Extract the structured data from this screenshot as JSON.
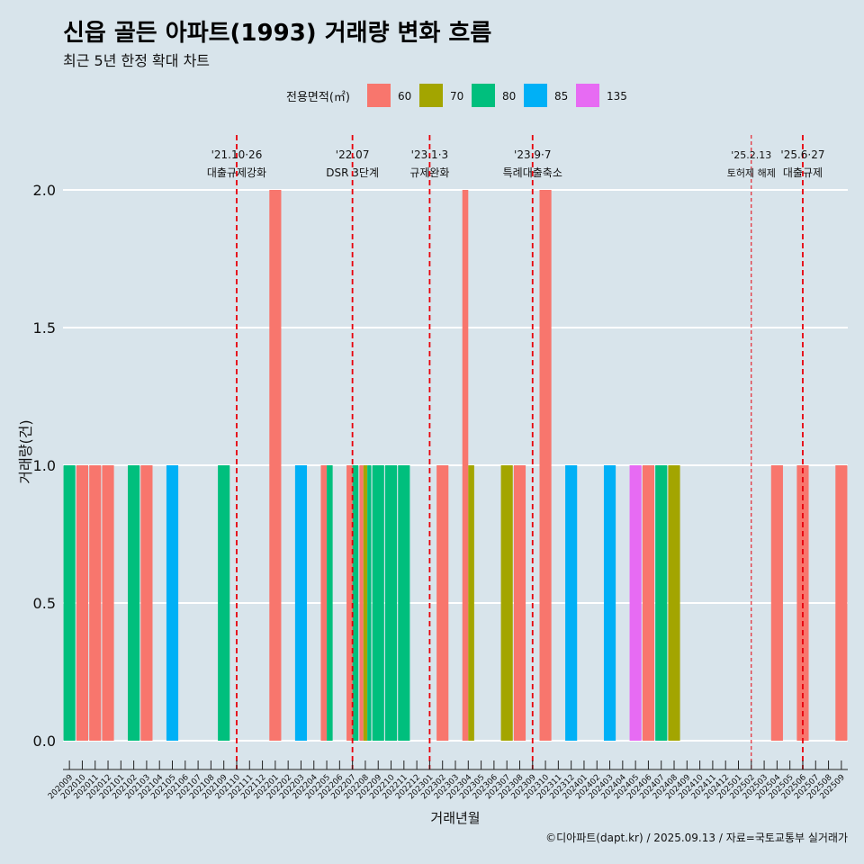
{
  "title": "신읍 골든 아파트(1993) 거래량 변화 흐름",
  "subtitle": "최근 5년 한정 확대 차트",
  "caption": "©디아파트(dapt.kr) / 2025.09.13 / 자료=국토교통부 실거래가",
  "chart_data": {
    "type": "bar",
    "xlabel": "거래년월",
    "ylabel": "거래량(건)",
    "ylim": [
      0,
      2
    ],
    "yticks": [
      0.0,
      0.5,
      1.0,
      1.5,
      2.0
    ],
    "ytick_labels": [
      "0.0",
      "0.5",
      "1.0",
      "1.5",
      "2.0"
    ],
    "legend_title": "전용면적(㎡)",
    "legend_position": "top",
    "grid": true,
    "categories": [
      "202009",
      "202010",
      "202011",
      "202012",
      "202101",
      "202102",
      "202103",
      "202104",
      "202105",
      "202106",
      "202107",
      "202108",
      "202109",
      "202110",
      "202111",
      "202112",
      "202201",
      "202202",
      "202203",
      "202204",
      "202205",
      "202206",
      "202207",
      "202208",
      "202209",
      "202210",
      "202211",
      "202212",
      "202301",
      "202302",
      "202303",
      "202304",
      "202305",
      "202306",
      "202307",
      "202308",
      "202309",
      "202310",
      "202311",
      "202312",
      "202401",
      "202402",
      "202403",
      "202404",
      "202405",
      "202406",
      "202407",
      "202408",
      "202409",
      "202410",
      "202411",
      "202412",
      "202501",
      "202502",
      "202503",
      "202504",
      "202505",
      "202506",
      "202507",
      "202508",
      "202509"
    ],
    "series": [
      {
        "name": "60",
        "color": "#f8766d",
        "values": [
          0,
          1,
          1,
          1,
          0,
          0,
          1,
          0,
          0,
          0,
          0,
          0,
          0,
          0,
          0,
          0,
          2,
          0,
          0,
          0,
          1,
          0,
          1,
          1,
          0,
          0,
          0,
          0,
          0,
          1,
          0,
          2,
          0,
          0,
          0,
          1,
          0,
          2,
          0,
          0,
          0,
          0,
          0,
          0,
          0,
          1,
          0,
          0,
          0,
          0,
          0,
          0,
          0,
          0,
          0,
          1,
          0,
          1,
          0,
          0,
          1
        ]
      },
      {
        "name": "70",
        "color": "#a3a500",
        "values": [
          0,
          0,
          0,
          0,
          0,
          0,
          0,
          0,
          0,
          0,
          0,
          0,
          0,
          0,
          0,
          0,
          0,
          0,
          0,
          0,
          0,
          0,
          0,
          1,
          0,
          0,
          0,
          0,
          0,
          0,
          0,
          1,
          0,
          0,
          1,
          0,
          0,
          0,
          0,
          0,
          0,
          0,
          0,
          0,
          0,
          0,
          0,
          1,
          0,
          0,
          0,
          0,
          0,
          0,
          0,
          0,
          0,
          0,
          0,
          0,
          0
        ]
      },
      {
        "name": "80",
        "color": "#00bf7d",
        "values": [
          1,
          0,
          0,
          0,
          0,
          1,
          0,
          0,
          0,
          0,
          0,
          0,
          1,
          0,
          0,
          0,
          0,
          0,
          0,
          0,
          1,
          0,
          1,
          1,
          1,
          1,
          1,
          0,
          0,
          0,
          0,
          0,
          0,
          0,
          0,
          0,
          0,
          0,
          0,
          0,
          0,
          0,
          0,
          0,
          0,
          0,
          1,
          0,
          0,
          0,
          0,
          0,
          0,
          0,
          0,
          0,
          0,
          0,
          0,
          0,
          0
        ]
      },
      {
        "name": "85",
        "color": "#00b0f6",
        "values": [
          0,
          0,
          0,
          0,
          0,
          0,
          0,
          0,
          1,
          0,
          0,
          0,
          0,
          0,
          0,
          0,
          0,
          0,
          1,
          0,
          0,
          0,
          0,
          0,
          0,
          0,
          0,
          0,
          0,
          0,
          0,
          0,
          0,
          0,
          0,
          0,
          0,
          0,
          0,
          1,
          0,
          0,
          1,
          0,
          0,
          0,
          0,
          0,
          0,
          0,
          0,
          0,
          0,
          0,
          0,
          0,
          0,
          0,
          0,
          0,
          0
        ]
      },
      {
        "name": "135",
        "color": "#e76bf3",
        "values": [
          0,
          0,
          0,
          0,
          0,
          0,
          0,
          0,
          0,
          0,
          0,
          0,
          0,
          0,
          0,
          0,
          0,
          0,
          0,
          0,
          0,
          0,
          0,
          0,
          0,
          0,
          0,
          0,
          0,
          0,
          0,
          0,
          0,
          0,
          0,
          0,
          0,
          0,
          0,
          0,
          0,
          0,
          0,
          0,
          1,
          0,
          0,
          0,
          0,
          0,
          0,
          0,
          0,
          0,
          0,
          0,
          0,
          0,
          0,
          0,
          0
        ]
      }
    ],
    "events": [
      {
        "category": "202110",
        "label_top": "'21.10·26",
        "label_bottom": "대출규제강화",
        "style": "thick"
      },
      {
        "category": "202207",
        "label_top": "'22.07",
        "label_bottom": "DSR 3단계",
        "style": "thick"
      },
      {
        "category": "202301",
        "label_top": "'23.1·3",
        "label_bottom": "규제완화",
        "style": "thick"
      },
      {
        "category": "202309",
        "label_top": "'23.9·7",
        "label_bottom": "특례대출축소",
        "style": "thick"
      },
      {
        "category": "202502",
        "label_top": "'25.2.13",
        "label_bottom": "토허제 해제",
        "style": "thin"
      },
      {
        "category": "202506",
        "label_top": "'25.6·27",
        "label_bottom": "대출규제",
        "style": "thick"
      }
    ]
  }
}
